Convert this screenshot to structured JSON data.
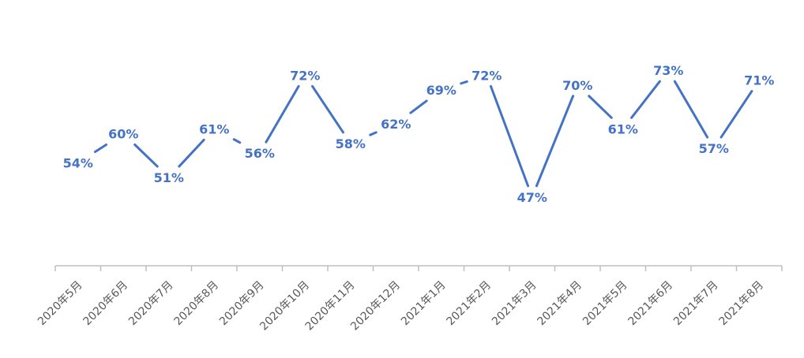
{
  "chart_data": {
    "type": "line",
    "categories": [
      "2020年5月",
      "2020年6月",
      "2020年7月",
      "2020年8月",
      "2020年9月",
      "2020年10月",
      "2020年11月",
      "2020年12月",
      "2021年1月",
      "2021年2月",
      "2021年3月",
      "2021年4月",
      "2021年5月",
      "2021年6月",
      "2021年7月",
      "2021年8月"
    ],
    "values": [
      0.54,
      0.6,
      0.51,
      0.61,
      0.56,
      0.72,
      0.58,
      0.62,
      0.69,
      0.72,
      0.47,
      0.7,
      0.61,
      0.73,
      0.57,
      0.71
    ],
    "data_labels": [
      "54%",
      "60%",
      "51%",
      "61%",
      "56%",
      "72%",
      "58%",
      "62%",
      "69%",
      "72%",
      "47%",
      "70%",
      "61%",
      "73%",
      "57%",
      "71%"
    ],
    "series": [
      {
        "values": [
          0.54,
          0.6,
          0.51,
          0.61,
          0.56,
          0.72,
          0.58,
          0.62,
          0.69,
          0.72,
          0.47,
          0.7,
          0.61,
          0.73,
          0.57,
          0.71
        ]
      }
    ],
    "title": "",
    "xlabel": "",
    "ylabel": "",
    "ylim": [
      0.4,
      0.8
    ],
    "grid": false,
    "line_color": "#4472C4",
    "axis_color": "#BFBFBF"
  }
}
